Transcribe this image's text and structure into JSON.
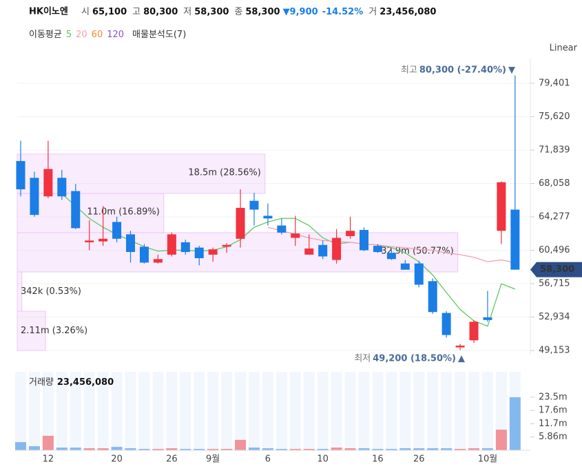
{
  "header": {
    "name": "HK이노엔",
    "items": [
      {
        "label": "시",
        "value": "65,100"
      },
      {
        "label": "고",
        "value": "80,300"
      },
      {
        "label": "저",
        "value": "58,300"
      },
      {
        "label": "종",
        "value": "58,300"
      }
    ],
    "change": "▼9,900",
    "change_pct": "-14.52%",
    "volume_label": "거",
    "volume": "23,456,080"
  },
  "toolbar": {
    "ma_title": "이동평균",
    "profile_title": "매물분석도(7)",
    "scale": "Linear"
  },
  "chart_data": [
    {
      "type": "candlestick",
      "categories": [
        null,
        null,
        "12",
        null,
        null,
        null,
        null,
        "20",
        null,
        null,
        null,
        "26",
        null,
        null,
        "9월",
        null,
        null,
        null,
        "6",
        null,
        null,
        null,
        "10",
        null,
        null,
        null,
        "16",
        null,
        null,
        "26",
        null,
        null,
        null,
        null,
        "10월",
        null,
        null
      ],
      "ohlc": {
        "open": [
          70600,
          68700,
          66600,
          68700,
          67200,
          61400,
          61500,
          63700,
          62300,
          60900,
          59100,
          60000,
          61400,
          60800,
          60000,
          60900,
          61800,
          66100,
          64400,
          63300,
          61900,
          60000,
          61100,
          59400,
          62100,
          62800,
          61000,
          60200,
          59000,
          59000,
          57000,
          53400,
          49500,
          50300,
          52900,
          62700,
          65100
        ],
        "high": [
          72900,
          69400,
          72900,
          69600,
          68000,
          63900,
          65500,
          64300,
          62700,
          61200,
          60000,
          62500,
          61700,
          61000,
          60800,
          61300,
          67400,
          67000,
          65800,
          64100,
          64400,
          62300,
          61600,
          62900,
          64300,
          63100,
          61200,
          60600,
          59400,
          59300,
          57300,
          53600,
          49900,
          52600,
          55900,
          68300,
          80300
        ],
        "low": [
          66600,
          64300,
          66400,
          66200,
          62900,
          60500,
          61000,
          61400,
          59100,
          59000,
          59000,
          59800,
          60000,
          58800,
          59200,
          60200,
          60800,
          63300,
          63300,
          62300,
          61000,
          60000,
          59500,
          59000,
          61800,
          60400,
          60200,
          59400,
          58300,
          56300,
          53300,
          50600,
          49200,
          50000,
          52400,
          61200,
          58300
        ],
        "close": [
          67400,
          64500,
          69700,
          66600,
          63000,
          61600,
          61800,
          61800,
          60300,
          59100,
          59500,
          62300,
          60300,
          59600,
          60600,
          61100,
          65300,
          65100,
          64100,
          62500,
          62400,
          60700,
          59800,
          61900,
          62700,
          60500,
          60300,
          59500,
          58300,
          56600,
          53500,
          50900,
          49700,
          52400,
          52600,
          68200,
          58300
        ]
      },
      "up_color": "#f0333f",
      "down_color": "#1a7ee6",
      "series": [
        {
          "name": "5",
          "color": "#5cc95c",
          "values": [
            null,
            null,
            null,
            66900,
            65500,
            64100,
            63100,
            62300,
            61600,
            60900,
            60400,
            60500,
            60500,
            60400,
            60500,
            60900,
            61700,
            63100,
            63700,
            64100,
            64100,
            63300,
            61900,
            61200,
            61400,
            61200,
            61100,
            60800,
            60200,
            59200,
            57700,
            55700,
            53800,
            52500,
            51900,
            56700,
            56100
          ]
        },
        {
          "name": "20",
          "color": "#f2a0b0",
          "values": [
            null,
            null,
            null,
            null,
            null,
            null,
            null,
            null,
            null,
            null,
            null,
            null,
            null,
            null,
            null,
            null,
            null,
            null,
            63100,
            62700,
            62300,
            61900,
            61600,
            61500,
            61400,
            61200,
            61100,
            60900,
            60800,
            60600,
            60500,
            60200,
            60000,
            59700,
            59200,
            59400,
            59100
          ]
        }
      ],
      "legend_extra": [
        {
          "name": "60",
          "color": "#f08a2c"
        },
        {
          "name": "120",
          "color": "#8a4fd8"
        }
      ],
      "ylim": [
        48685,
        82210
      ],
      "yticks": [
        {
          "value": 49153,
          "label": "49,153"
        },
        {
          "value": 52934,
          "label": "52,934"
        },
        {
          "value": 56715,
          "label": "56,715"
        },
        {
          "value": 60496,
          "label": "60,496"
        },
        {
          "value": 64277,
          "label": "64,277"
        },
        {
          "value": 68058,
          "label": "68,058"
        },
        {
          "value": 71839,
          "label": "71,839"
        },
        {
          "value": 75620,
          "label": "75,620"
        },
        {
          "value": 79401,
          "label": "79,401"
        }
      ],
      "grid": true,
      "last": {
        "value": 58300,
        "label": "58,300"
      },
      "high_note": {
        "label": "최고",
        "text": "80,300 (-27.40%)",
        "value": 80300
      },
      "low_note": {
        "label": "최저",
        "text": "49,200 (18.50%)",
        "value": 49200
      },
      "profile": {
        "edges": [
          49153,
          53599,
          58045,
          62491,
          66937,
          71383
        ],
        "values": [
          3.26,
          0.53,
          50.77,
          16.89,
          28.56
        ],
        "value_labels": [
          "2.11m (3.26%)",
          "342k (0.53%)",
          "32.9m (50.77%)",
          "11.0m (16.89%)",
          "18.5m (28.56%)"
        ]
      }
    },
    {
      "type": "volume",
      "title": "거래량",
      "value_label": "23,456,080",
      "values": [
        3600000,
        1800000,
        6400000,
        1200000,
        1200000,
        900000,
        900000,
        1500000,
        900000,
        600000,
        600000,
        900000,
        600000,
        600000,
        600000,
        600000,
        4600000,
        1200000,
        900000,
        600000,
        600000,
        600000,
        600000,
        1200000,
        900000,
        900000,
        600000,
        600000,
        900000,
        900000,
        900000,
        900000,
        600000,
        900000,
        900000,
        9100000,
        23456080
      ],
      "ylim": [
        0,
        34700000
      ],
      "yticks": [
        {
          "value": 5860000,
          "label": "5.86m"
        },
        {
          "value": 11700000,
          "label": "11.7m"
        },
        {
          "value": 17600000,
          "label": "17.6m"
        },
        {
          "value": 23500000,
          "label": "23.5m"
        }
      ]
    }
  ]
}
